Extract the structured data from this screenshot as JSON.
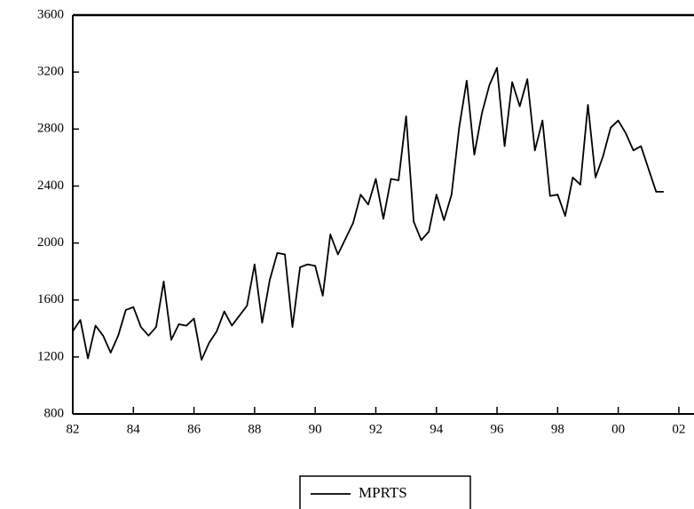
{
  "chart_data": {
    "type": "line",
    "x": [
      1982,
      1982.25,
      1982.5,
      1982.75,
      1983,
      1983.25,
      1983.5,
      1983.75,
      1984,
      1984.25,
      1984.5,
      1984.75,
      1985,
      1985.25,
      1985.5,
      1985.75,
      1986,
      1986.25,
      1986.5,
      1986.75,
      1987,
      1987.25,
      1987.5,
      1987.75,
      1988,
      1988.25,
      1988.5,
      1988.75,
      1989,
      1989.25,
      1989.5,
      1989.75,
      1990,
      1990.25,
      1990.5,
      1990.75,
      1991,
      1991.25,
      1991.5,
      1991.75,
      1992,
      1992.25,
      1992.5,
      1992.75,
      1993,
      1993.25,
      1993.5,
      1993.75,
      1994,
      1994.25,
      1994.5,
      1994.75,
      1995,
      1995.25,
      1995.5,
      1995.75,
      1996,
      1996.25,
      1996.5,
      1996.75,
      1997,
      1997.25,
      1997.5,
      1997.75,
      1998,
      1998.25,
      1998.5,
      1998.75,
      1999,
      1999.25,
      1999.5,
      1999.75,
      2000,
      2000.25,
      2000.5,
      2000.75,
      2001,
      2001.25,
      2001.5
    ],
    "series": [
      {
        "name": "MPRTS",
        "color": "#000000",
        "values": [
          1380,
          1460,
          1190,
          1420,
          1350,
          1230,
          1350,
          1530,
          1550,
          1410,
          1350,
          1410,
          1730,
          1320,
          1430,
          1420,
          1470,
          1180,
          1300,
          1380,
          1520,
          1420,
          1490,
          1560,
          1850,
          1440,
          1740,
          1930,
          1920,
          1410,
          1830,
          1850,
          1840,
          1630,
          2060,
          1920,
          2030,
          2140,
          2340,
          2270,
          2450,
          2170,
          2450,
          2440,
          2890,
          2150,
          2020,
          2080,
          2340,
          2160,
          2340,
          2810,
          3140,
          2620,
          2910,
          3110,
          3230,
          2680,
          3130,
          2960,
          3150,
          2650,
          2860,
          2330,
          2340,
          2190,
          2460,
          2410,
          2970,
          2460,
          2610,
          2810,
          2860,
          2770,
          2650,
          2680,
          2520,
          2360,
          2360
        ]
      }
    ],
    "xlim": [
      1982,
      2002.5
    ],
    "xticks": [
      {
        "value": 1982,
        "label": "82"
      },
      {
        "value": 1984,
        "label": "84"
      },
      {
        "value": 1986,
        "label": "86"
      },
      {
        "value": 1988,
        "label": "88"
      },
      {
        "value": 1990,
        "label": "90"
      },
      {
        "value": 1992,
        "label": "92"
      },
      {
        "value": 1994,
        "label": "94"
      },
      {
        "value": 1996,
        "label": "96"
      },
      {
        "value": 1998,
        "label": "98"
      },
      {
        "value": 2000,
        "label": "00"
      },
      {
        "value": 2002,
        "label": "02"
      }
    ],
    "ylim": [
      800,
      3600
    ],
    "yticks": [
      800,
      1200,
      1600,
      2000,
      2400,
      2800,
      3200,
      3600
    ]
  }
}
